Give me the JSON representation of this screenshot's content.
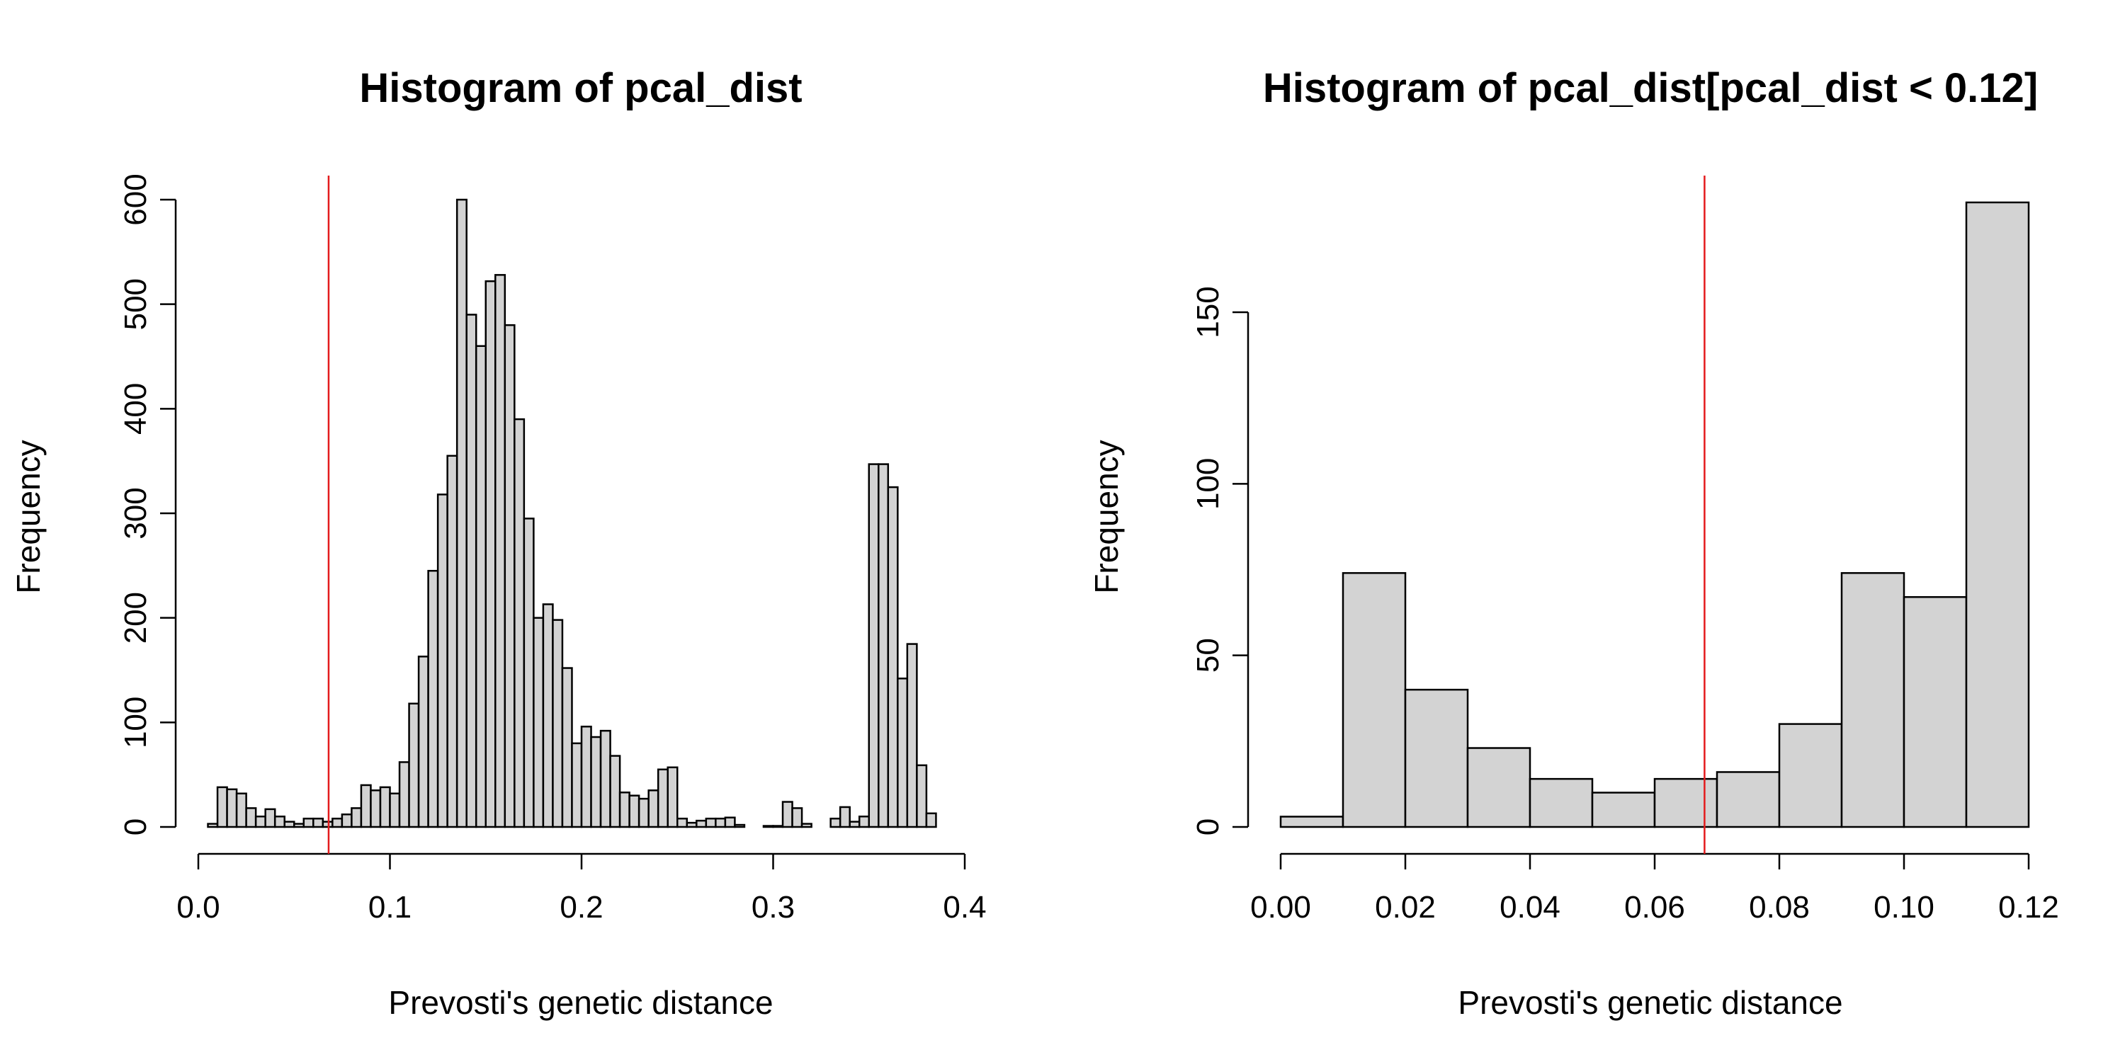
{
  "figure": {
    "colors": {
      "bar_fill": "#d3d3d3",
      "bar_stroke": "#000000",
      "ref_line": "#e31a1c"
    }
  },
  "chart_data": [
    {
      "type": "bar",
      "title": "Histogram of pcal_dist",
      "xlabel": "Prevosti's genetic distance",
      "ylabel": "Frequency",
      "xlim": [
        0.0,
        0.4
      ],
      "ylim": [
        0,
        600
      ],
      "x_ticks": [
        "0.0",
        "0.1",
        "0.2",
        "0.3",
        "0.4"
      ],
      "y_ticks": [
        "0",
        "100",
        "200",
        "300",
        "400",
        "500",
        "600"
      ],
      "bin_width": 0.005,
      "bin_start": 0.005,
      "values": [
        3,
        38,
        36,
        32,
        18,
        10,
        17,
        10,
        5,
        3,
        8,
        8,
        5,
        8,
        12,
        18,
        40,
        35,
        38,
        32,
        62,
        118,
        163,
        245,
        318,
        355,
        600,
        490,
        460,
        522,
        528,
        480,
        390,
        295,
        200,
        213,
        198,
        152,
        80,
        96,
        86,
        92,
        68,
        33,
        30,
        27,
        35,
        55,
        57,
        8,
        4,
        6,
        8,
        8,
        9,
        2,
        0,
        0,
        1,
        1,
        24,
        18,
        3,
        0,
        0,
        8,
        19,
        5,
        10,
        347,
        347,
        325,
        142,
        175,
        59,
        13
      ],
      "reference_line_x": 0.068
    },
    {
      "type": "bar",
      "title": "Histogram of pcal_dist[pcal_dist < 0.12]",
      "xlabel": "Prevosti's genetic distance",
      "ylabel": "Frequency",
      "xlim": [
        0.0,
        0.12
      ],
      "ylim": [
        0,
        150
      ],
      "x_ticks": [
        "0.00",
        "0.02",
        "0.04",
        "0.06",
        "0.08",
        "0.10",
        "0.12"
      ],
      "y_ticks": [
        "0",
        "50",
        "100",
        "150"
      ],
      "bin_width": 0.01,
      "bin_start": 0.0,
      "values": [
        3,
        74,
        40,
        23,
        14,
        10,
        14,
        16,
        30,
        74,
        67,
        182
      ],
      "reference_line_x": 0.068
    }
  ]
}
